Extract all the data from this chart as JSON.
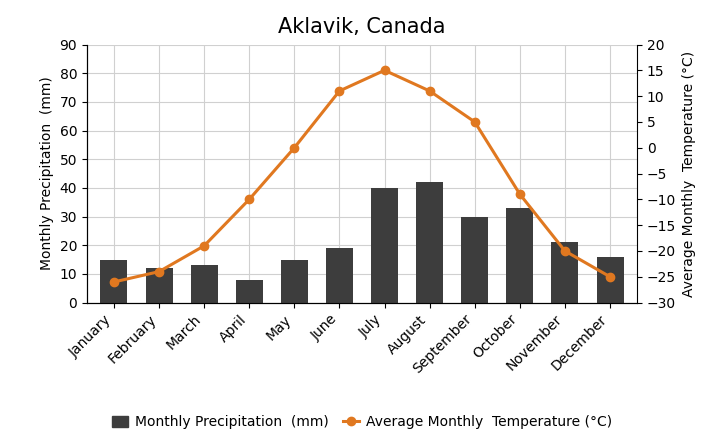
{
  "title": "Aklavik, Canada",
  "months": [
    "January",
    "February",
    "March",
    "April",
    "May",
    "June",
    "July",
    "August",
    "September",
    "October",
    "November",
    "December"
  ],
  "precipitation": [
    15,
    12,
    13,
    8,
    15,
    19,
    40,
    42,
    30,
    33,
    21,
    16
  ],
  "temperature": [
    -26,
    -24,
    -19,
    -10,
    0,
    11,
    15,
    11,
    5,
    -9,
    -20,
    -25
  ],
  "bar_color": "#3d3d3d",
  "line_color": "#e07820",
  "marker_color": "#e07820",
  "background_color": "#ffffff",
  "plot_bg_color": "#ffffff",
  "grid_color": "#d0d0d0",
  "ylabel_left": "Monthly Precipitation  (mm)",
  "ylabel_right": "Average Monthly  Temperature (°C)",
  "ylim_left": [
    0,
    90
  ],
  "ylim_right": [
    -30,
    20
  ],
  "yticks_left": [
    0,
    10,
    20,
    30,
    40,
    50,
    60,
    70,
    80,
    90
  ],
  "yticks_right": [
    -30,
    -25,
    -20,
    -15,
    -10,
    -5,
    0,
    5,
    10,
    15,
    20
  ],
  "legend_precip": "Monthly Precipitation  (mm)",
  "legend_temp": "Average Monthly  Temperature (°C)",
  "title_fontsize": 15,
  "label_fontsize": 10,
  "tick_fontsize": 10
}
